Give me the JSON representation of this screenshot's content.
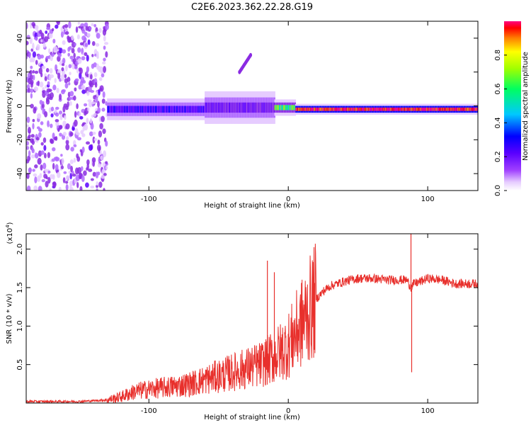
{
  "title": "C2E6.2023.362.22.28.G19",
  "colors": {
    "snr_line": "#e8302c",
    "spectrogram_palette": [
      "#ffffff",
      "#d9b8ff",
      "#8a2be2",
      "#5a00ff",
      "#0000ff",
      "#00c8ff",
      "#00ff80",
      "#80ff00",
      "#ffff00",
      "#ff8000",
      "#ff0000",
      "#ff0080"
    ]
  },
  "chart_data": [
    {
      "type": "heatmap",
      "xlabel": "Height of straight line (km)",
      "ylabel": "Frequency (Hz)",
      "xlim": [
        -188,
        136
      ],
      "ylim": [
        -50,
        50
      ],
      "x_ticks": [
        -100,
        0,
        100
      ],
      "y_ticks": [
        -40,
        -20,
        0,
        20,
        40
      ],
      "colorbar": {
        "label": "Normalized spectral amplitude",
        "range": [
          0,
          1
        ],
        "ticks": [
          "0.0",
          "0.2",
          "0.4",
          "0.6",
          "0.8"
        ]
      },
      "bands": [
        {
          "x_start": -188,
          "x_end": -130,
          "structure": "broadband noise",
          "freq_range": [
            -50,
            50
          ],
          "amplitude": 0.15
        },
        {
          "x_start": -130,
          "x_end": -60,
          "center_freq": -2,
          "half_width": 4,
          "amplitude": 0.35
        },
        {
          "x_start": -60,
          "x_end": -10,
          "center_freq": -1,
          "half_width": 6,
          "amplitude": 0.3
        },
        {
          "x_start": -10,
          "x_end": 5,
          "center_freq": -1,
          "half_width": 3,
          "amplitude": 0.6
        },
        {
          "x_start": 5,
          "x_end": 136,
          "center_freq": -2,
          "half_width": 2,
          "amplitude": 0.95
        }
      ],
      "side_trace": {
        "x": [
          -35,
          -27
        ],
        "freq": [
          20,
          30
        ],
        "amplitude": 0.25
      }
    },
    {
      "type": "line",
      "xlabel": "Height of straight line (km)",
      "ylabel": "SNR (10 * v/v)",
      "y_multiplier": "(x10",
      "y_multiplier_exp": "4",
      "y_multiplier_close": ")",
      "xlim": [
        -188,
        136
      ],
      "ylim": [
        0,
        2.2
      ],
      "x_ticks": [
        -100,
        0,
        100
      ],
      "y_ticks": [
        "0.5",
        "1.0",
        "1.5",
        "2.0"
      ],
      "series": [
        {
          "x": [
            -188,
            -150,
            -130,
            -120,
            -110,
            -100,
            -90,
            -80,
            -70,
            -60,
            -50,
            -40,
            -30,
            -20,
            -10,
            0,
            5,
            10,
            15,
            20,
            25,
            30,
            40,
            50,
            60,
            70,
            80,
            85,
            88,
            90,
            95,
            100,
            110,
            120,
            136
          ],
          "y": [
            0.02,
            0.02,
            0.04,
            0.08,
            0.15,
            0.18,
            0.2,
            0.22,
            0.25,
            0.3,
            0.35,
            0.4,
            0.45,
            0.5,
            0.6,
            0.75,
            0.9,
            1.05,
            1.2,
            1.35,
            1.45,
            1.52,
            1.58,
            1.62,
            1.62,
            1.6,
            1.6,
            1.6,
            1.5,
            1.55,
            1.58,
            1.62,
            1.6,
            1.55,
            1.55
          ]
        }
      ],
      "spikes": [
        {
          "x": -15,
          "y": 1.85
        },
        {
          "x": -10,
          "y": 1.7
        },
        {
          "x": 88,
          "y": 2.2
        },
        {
          "x": 88.5,
          "y": 0.4
        }
      ]
    }
  ]
}
